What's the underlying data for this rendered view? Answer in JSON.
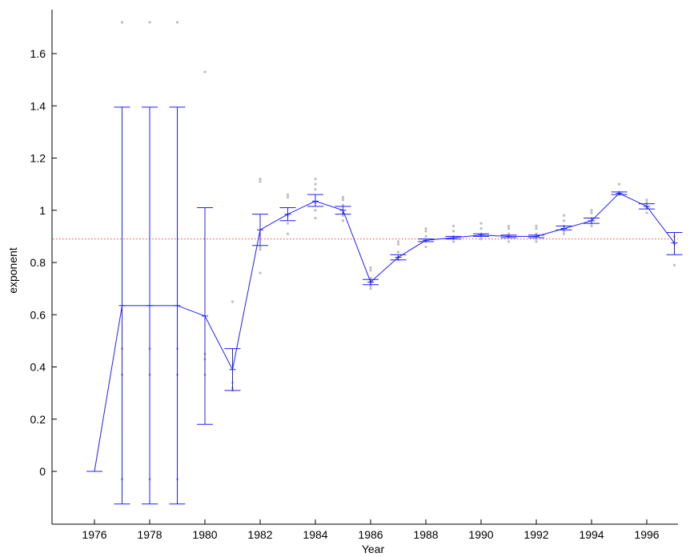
{
  "chart_data": {
    "type": "line",
    "xlabel": "Year",
    "ylabel": "exponent",
    "xlim": [
      1974.6,
      1998.0
    ],
    "ylim": [
      -0.17,
      1.76
    ],
    "x_ticks": [
      1976,
      1978,
      1980,
      1982,
      1984,
      1986,
      1988,
      1990,
      1992,
      1994,
      1996
    ],
    "y_ticks": [
      0,
      0.2,
      0.4,
      0.6,
      0.8,
      1,
      1.2,
      1.4,
      1.6
    ],
    "x_tick_labels": [
      "1976",
      "1978",
      "1980",
      "1982",
      "1984",
      "1986",
      "1988",
      "1990",
      "1992",
      "1994",
      "1996"
    ],
    "y_tick_labels": [
      "0",
      "0.2",
      "0.4",
      "0.6",
      "0.8",
      "1",
      "1.2",
      "1.4",
      "1.6"
    ],
    "reference_line": {
      "y": 0.89,
      "style": "dotted",
      "color": "#ff3b3b"
    },
    "series": [
      {
        "color": "#1f1fff",
        "points": [
          {
            "x": 1976,
            "y": 0.0,
            "lower": 0.0,
            "upper": 0.0
          },
          {
            "x": 1977,
            "y": 0.635,
            "lower": -0.125,
            "upper": 1.395
          },
          {
            "x": 1978,
            "y": 0.635,
            "lower": -0.125,
            "upper": 1.395
          },
          {
            "x": 1979,
            "y": 0.635,
            "lower": -0.125,
            "upper": 1.395
          },
          {
            "x": 1980,
            "y": 0.595,
            "lower": 0.18,
            "upper": 1.01
          },
          {
            "x": 1981,
            "y": 0.39,
            "lower": 0.31,
            "upper": 0.47
          },
          {
            "x": 1982,
            "y": 0.925,
            "lower": 0.865,
            "upper": 0.985
          },
          {
            "x": 1983,
            "y": 0.985,
            "lower": 0.96,
            "upper": 1.01
          },
          {
            "x": 1984,
            "y": 1.035,
            "lower": 1.015,
            "upper": 1.06
          },
          {
            "x": 1985,
            "y": 1.0,
            "lower": 0.985,
            "upper": 1.015
          },
          {
            "x": 1986,
            "y": 0.725,
            "lower": 0.715,
            "upper": 0.735
          },
          {
            "x": 1987,
            "y": 0.82,
            "lower": 0.81,
            "upper": 0.83
          },
          {
            "x": 1988,
            "y": 0.885,
            "lower": 0.88,
            "upper": 0.89
          },
          {
            "x": 1989,
            "y": 0.895,
            "lower": 0.89,
            "upper": 0.9
          },
          {
            "x": 1990,
            "y": 0.905,
            "lower": 0.9,
            "upper": 0.91
          },
          {
            "x": 1991,
            "y": 0.9,
            "lower": 0.895,
            "upper": 0.905
          },
          {
            "x": 1992,
            "y": 0.9,
            "lower": 0.895,
            "upper": 0.905
          },
          {
            "x": 1993,
            "y": 0.93,
            "lower": 0.925,
            "upper": 0.94
          },
          {
            "x": 1994,
            "y": 0.96,
            "lower": 0.95,
            "upper": 0.97
          },
          {
            "x": 1995,
            "y": 1.065,
            "lower": 1.06,
            "upper": 1.07
          },
          {
            "x": 1996,
            "y": 1.015,
            "lower": 1.005,
            "upper": 1.025
          },
          {
            "x": 1997,
            "y": 0.875,
            "lower": 0.83,
            "upper": 0.915
          }
        ]
      }
    ],
    "scatter_points": {
      "color": "#bdbdbd",
      "points": [
        [
          1977,
          1.72
        ],
        [
          1977,
          0.47
        ],
        [
          1977,
          0.37
        ],
        [
          1977,
          -0.03
        ],
        [
          1978,
          1.72
        ],
        [
          1978,
          0.47
        ],
        [
          1978,
          0.37
        ],
        [
          1978,
          -0.03
        ],
        [
          1979,
          1.72
        ],
        [
          1979,
          0.47
        ],
        [
          1979,
          0.37
        ],
        [
          1979,
          -0.03
        ],
        [
          1980,
          1.53
        ],
        [
          1980,
          0.45
        ],
        [
          1980,
          0.43
        ],
        [
          1980,
          0.37
        ],
        [
          1981,
          0.65
        ],
        [
          1981,
          0.34
        ],
        [
          1981,
          0.32
        ],
        [
          1981,
          0.31
        ],
        [
          1982,
          1.11
        ],
        [
          1982,
          1.12
        ],
        [
          1982,
          0.86
        ],
        [
          1982,
          0.85
        ],
        [
          1982,
          0.76
        ],
        [
          1983,
          1.05
        ],
        [
          1983,
          1.06
        ],
        [
          1983,
          0.98
        ],
        [
          1983,
          0.95
        ],
        [
          1983,
          0.91
        ],
        [
          1984,
          1.12
        ],
        [
          1984,
          1.1
        ],
        [
          1984,
          1.08
        ],
        [
          1984,
          1.03
        ],
        [
          1984,
          1.0
        ],
        [
          1984,
          0.97
        ],
        [
          1985,
          1.05
        ],
        [
          1985,
          1.04
        ],
        [
          1985,
          1.02
        ],
        [
          1985,
          0.99
        ],
        [
          1985,
          0.98
        ],
        [
          1985,
          0.96
        ],
        [
          1986,
          0.78
        ],
        [
          1986,
          0.77
        ],
        [
          1986,
          0.74
        ],
        [
          1986,
          0.72
        ],
        [
          1986,
          0.71
        ],
        [
          1986,
          0.7
        ],
        [
          1987,
          0.88
        ],
        [
          1987,
          0.87
        ],
        [
          1987,
          0.84
        ],
        [
          1987,
          0.82
        ],
        [
          1987,
          0.81
        ],
        [
          1988,
          0.93
        ],
        [
          1988,
          0.92
        ],
        [
          1988,
          0.9
        ],
        [
          1988,
          0.88
        ],
        [
          1988,
          0.86
        ],
        [
          1989,
          0.94
        ],
        [
          1989,
          0.92
        ],
        [
          1989,
          0.9
        ],
        [
          1989,
          0.89
        ],
        [
          1989,
          0.88
        ],
        [
          1990,
          0.95
        ],
        [
          1990,
          0.93
        ],
        [
          1990,
          0.91
        ],
        [
          1990,
          0.9
        ],
        [
          1990,
          0.89
        ],
        [
          1991,
          0.94
        ],
        [
          1991,
          0.93
        ],
        [
          1991,
          0.91
        ],
        [
          1991,
          0.9
        ],
        [
          1991,
          0.88
        ],
        [
          1992,
          0.94
        ],
        [
          1992,
          0.93
        ],
        [
          1992,
          0.91
        ],
        [
          1992,
          0.89
        ],
        [
          1992,
          0.88
        ],
        [
          1993,
          0.98
        ],
        [
          1993,
          0.96
        ],
        [
          1993,
          0.94
        ],
        [
          1993,
          0.92
        ],
        [
          1993,
          0.91
        ],
        [
          1994,
          1.0
        ],
        [
          1994,
          0.99
        ],
        [
          1994,
          0.97
        ],
        [
          1994,
          0.95
        ],
        [
          1994,
          0.94
        ],
        [
          1995,
          1.1
        ],
        [
          1995,
          1.07
        ],
        [
          1995,
          1.06
        ],
        [
          1996,
          1.04
        ],
        [
          1996,
          1.03
        ],
        [
          1996,
          1.01
        ],
        [
          1996,
          0.99
        ],
        [
          1997,
          0.9
        ],
        [
          1997,
          0.87
        ],
        [
          1997,
          0.79
        ]
      ]
    }
  }
}
